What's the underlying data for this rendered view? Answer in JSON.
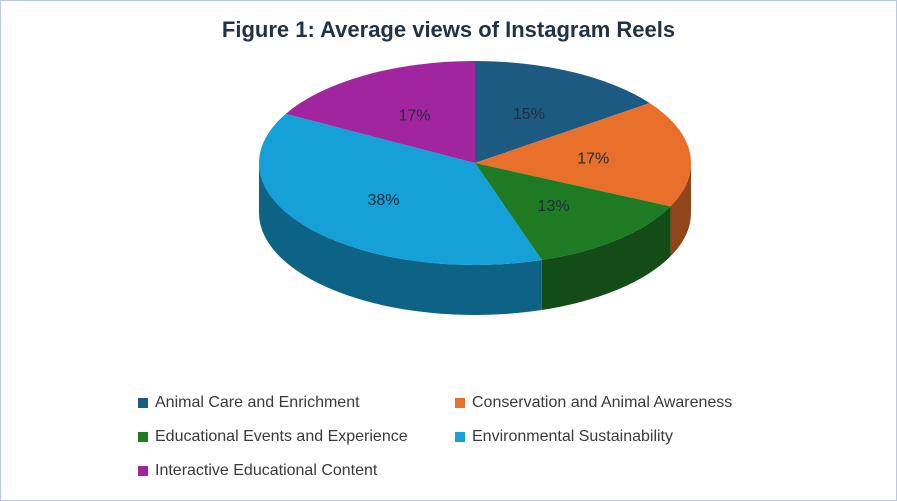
{
  "chart_data": {
    "type": "pie",
    "title": "Figure 1: Average views of Instagram Reels",
    "categories": [
      "Animal Care and Enrichment",
      "Conservation and Animal Awareness",
      "Educational Events and Experience",
      "Environmental Sustainability",
      "Interactive Educational Content"
    ],
    "values": [
      15,
      17,
      13,
      38,
      17
    ],
    "data_labels": [
      "15%",
      "17%",
      "13%",
      "38%",
      "17%"
    ],
    "colors": [
      "#1d5a82",
      "#e8702a",
      "#1f7a24",
      "#15a0d8",
      "#a0259e"
    ],
    "three_d": true,
    "legend_position": "bottom"
  }
}
